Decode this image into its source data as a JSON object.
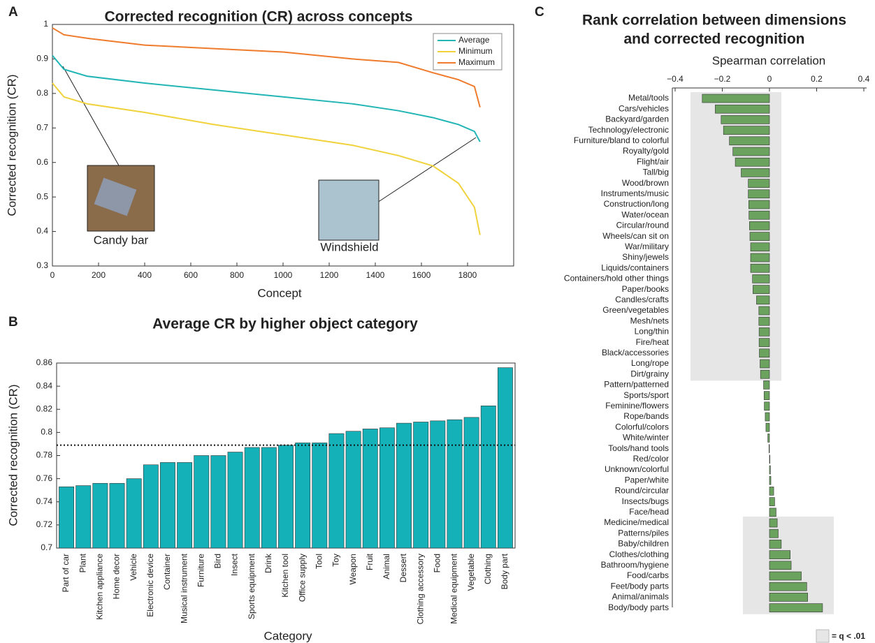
{
  "chart_data": [
    {
      "type": "line",
      "panel": "A",
      "title": "Corrected recognition (CR) across concepts",
      "x_label": "Concept",
      "y_label": "Corrected recognition (CR)",
      "x": [
        0,
        50,
        150,
        400,
        700,
        1000,
        1300,
        1500,
        1650,
        1760,
        1830,
        1854
      ],
      "series": [
        {
          "name": "Average",
          "color": "#22b5b5",
          "values": [
            0.91,
            0.87,
            0.85,
            0.83,
            0.81,
            0.79,
            0.77,
            0.75,
            0.73,
            0.71,
            0.69,
            0.66
          ]
        },
        {
          "name": "Minimum",
          "color": "#f0d23c",
          "values": [
            0.83,
            0.79,
            0.77,
            0.745,
            0.71,
            0.68,
            0.65,
            0.62,
            0.59,
            0.54,
            0.47,
            0.39
          ]
        },
        {
          "name": "Maximum",
          "color": "#ef7b2c",
          "values": [
            0.99,
            0.97,
            0.96,
            0.94,
            0.93,
            0.92,
            0.9,
            0.89,
            0.86,
            0.84,
            0.82,
            0.76
          ]
        }
      ],
      "xlim": [
        0,
        2000
      ],
      "xticks": [
        0,
        200,
        400,
        600,
        800,
        1000,
        1200,
        1400,
        1600,
        1800
      ],
      "ylim": [
        0.3,
        1
      ],
      "yticks": [
        0.3,
        0.4,
        0.5,
        0.6,
        0.7,
        0.8,
        0.9,
        1
      ],
      "legend": "upper right",
      "annotations": [
        "Candy bar",
        "Windshield"
      ]
    },
    {
      "type": "bar",
      "panel": "B",
      "title": "Average CR by higher object category",
      "x_label": "Category",
      "y_label": "Corrected recognition (CR)",
      "categories": [
        "Part of car",
        "Plant",
        "Kitchen appliance",
        "Home decor",
        "Vehicle",
        "Electronic device",
        "Container",
        "Musical instrument",
        "Furniture",
        "Bird",
        "Insect",
        "Sports equipment",
        "Drink",
        "Kitchen tool",
        "Office supply",
        "Tool",
        "Toy",
        "Weapon",
        "Fruit",
        "Animal",
        "Dessert",
        "Clothing accessory",
        "Food",
        "Medical equipment",
        "Vegetable",
        "Clothing",
        "Body part"
      ],
      "values": [
        0.753,
        0.754,
        0.756,
        0.756,
        0.76,
        0.772,
        0.774,
        0.774,
        0.78,
        0.78,
        0.783,
        0.787,
        0.787,
        0.789,
        0.791,
        0.791,
        0.799,
        0.801,
        0.803,
        0.804,
        0.808,
        0.809,
        0.81,
        0.811,
        0.813,
        0.823,
        0.856
      ],
      "color": "#14b2b8",
      "reference_line": 0.789,
      "ylim": [
        0.7,
        0.86
      ],
      "yticks": [
        0.7,
        0.72,
        0.74,
        0.76,
        0.78,
        0.8,
        0.82,
        0.84,
        0.86
      ]
    },
    {
      "type": "barh",
      "panel": "C",
      "title": [
        "Rank correlation between dimensions",
        "and corrected recognition"
      ],
      "x_label": "Spearman correlation",
      "categories": [
        "Metal/tools",
        "Cars/vehicles",
        "Backyard/garden",
        "Technology/electronic",
        "Furniture/bland to colorful",
        "Royalty/gold",
        "Flight/air",
        "Tall/big",
        "Wood/brown",
        "Instruments/music",
        "Construction/long",
        "Water/ocean",
        "Circular/round",
        "Wheels/can sit on",
        "War/military",
        "Shiny/jewels",
        "Liquids/containers",
        "Containers/hold other things",
        "Paper/books",
        "Candles/crafts",
        "Green/vegetables",
        "Mesh/nets",
        "Long/thin",
        "Fire/heat",
        "Black/accessories",
        "Long/rope",
        "Dirt/grainy",
        "Pattern/patterned",
        "Sports/sport",
        "Feminine/flowers",
        "Rope/bands",
        "Colorful/colors",
        "White/winter",
        "Tools/hand tools",
        "Red/color",
        "Unknown/colorful",
        "Paper/white",
        "Round/circular",
        "Insects/bugs",
        "Face/head",
        "Medicine/medical",
        "Patterns/piles",
        "Baby/children",
        "Clothes/clothing",
        "Bathroom/hygiene",
        "Food/carbs",
        "Feet/body parts",
        "Animal/animals",
        "Body/body parts"
      ],
      "values": [
        -0.285,
        -0.23,
        -0.205,
        -0.195,
        -0.17,
        -0.155,
        -0.145,
        -0.12,
        -0.09,
        -0.09,
        -0.088,
        -0.087,
        -0.085,
        -0.083,
        -0.08,
        -0.08,
        -0.08,
        -0.072,
        -0.07,
        -0.055,
        -0.045,
        -0.045,
        -0.044,
        -0.044,
        -0.043,
        -0.04,
        -0.038,
        -0.025,
        -0.023,
        -0.022,
        -0.018,
        -0.015,
        -0.007,
        -0.002,
        0.002,
        0.004,
        0.006,
        0.018,
        0.022,
        0.028,
        0.033,
        0.037,
        0.05,
        0.088,
        0.092,
        0.135,
        0.158,
        0.162,
        0.225
      ],
      "color": "#6aa25e",
      "xlim": [
        -0.4,
        0.4
      ],
      "xticks": [
        {
          "value": -0.4,
          "label": "−0.4"
        },
        {
          "value": -0.2,
          "label": "−0.2"
        },
        0,
        0.2,
        0.4
      ],
      "legend_label": "= q < .01"
    }
  ]
}
